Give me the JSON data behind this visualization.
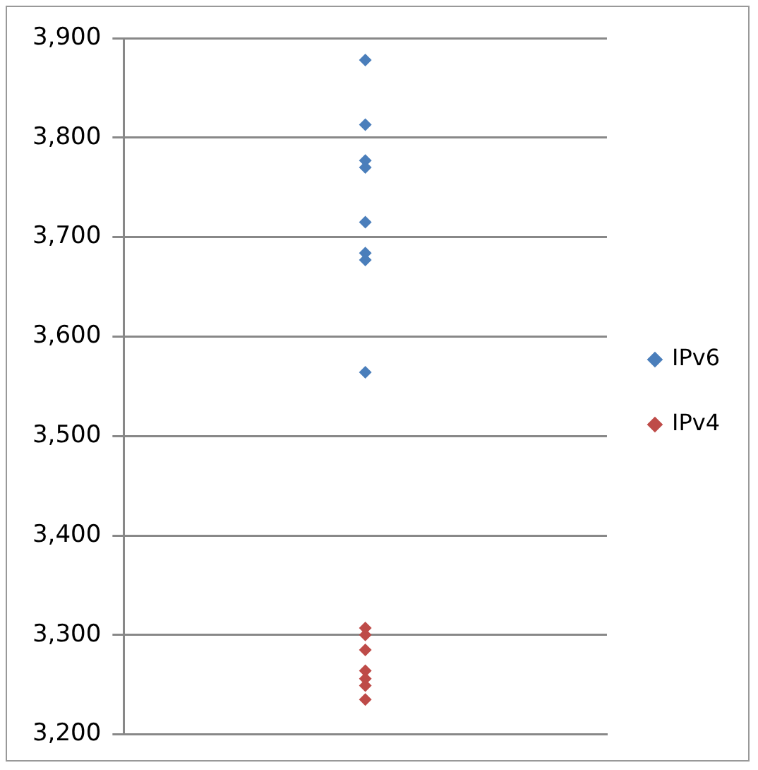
{
  "chart_data": {
    "type": "scatter",
    "categories": [
      null
    ],
    "ylim": [
      3200,
      3900
    ],
    "yticks": [
      {
        "value": 3200,
        "label": "3,200"
      },
      {
        "value": 3300,
        "label": "3,300"
      },
      {
        "value": 3400,
        "label": "3,400"
      },
      {
        "value": 3500,
        "label": "3,500"
      },
      {
        "value": 3600,
        "label": "3,600"
      },
      {
        "value": 3700,
        "label": "3,700"
      },
      {
        "value": 3800,
        "label": "3,800"
      },
      {
        "value": 3900,
        "label": "3,900"
      }
    ],
    "tick_labels": "y",
    "grid": "y",
    "legend": "right",
    "marker": "diamond",
    "series": [
      {
        "name": "IPv6",
        "color": "#4a7ebb",
        "x": [
          null,
          null,
          null,
          null,
          null,
          null,
          null,
          null
        ],
        "values": [
          3878,
          3813,
          3777,
          3770,
          3715,
          3684,
          3677,
          3564
        ]
      },
      {
        "name": "IPv4",
        "color": "#be4b48",
        "x": [
          null,
          null,
          null,
          null,
          null,
          null,
          null
        ],
        "values": [
          3307,
          3300,
          3285,
          3264,
          3256,
          3249,
          3235
        ]
      }
    ]
  }
}
